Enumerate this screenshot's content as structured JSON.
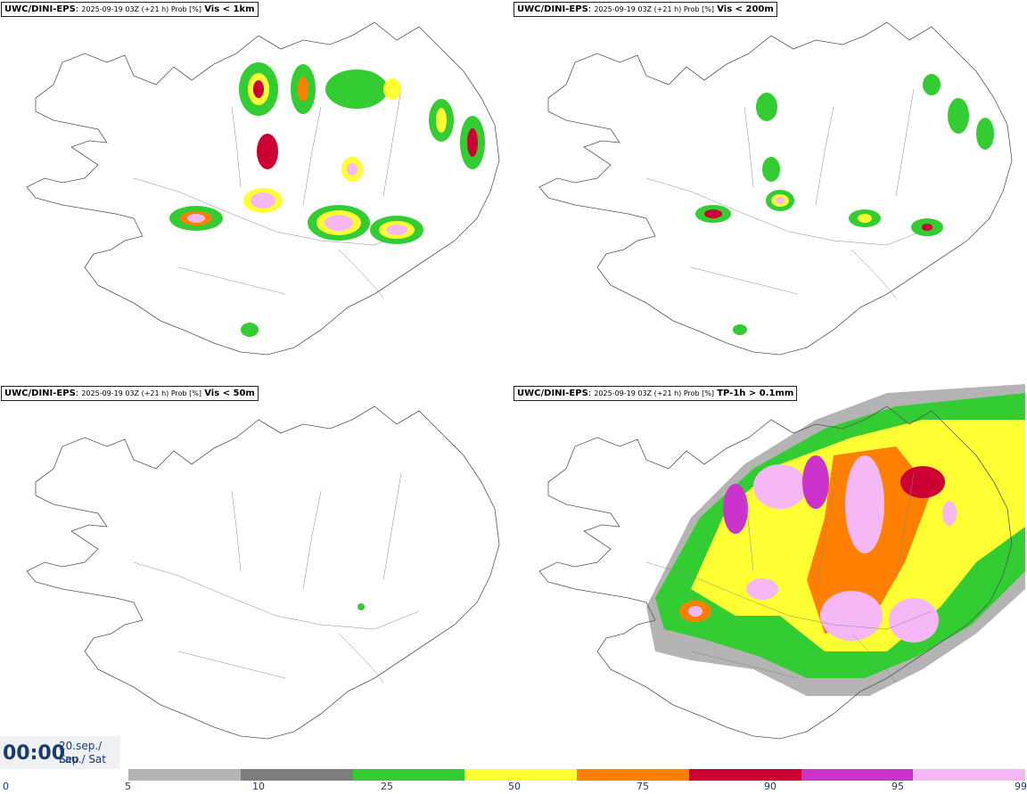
{
  "panels": [
    {
      "source": "UWC/DINI-EPS",
      "meta": "2025-09-19 03Z (+21 h) Prob [%]",
      "variable": "Vis < 1km"
    },
    {
      "source": "UWC/DINI-EPS",
      "meta": "2025-09-19 03Z (+21 h) Prob [%]",
      "variable": "Vis < 200m"
    },
    {
      "source": "UWC/DINI-EPS",
      "meta": "2025-09-19 03Z (+21 h) Prob [%]",
      "variable": "Vis < 50m"
    },
    {
      "source": "UWC/DINI-EPS",
      "meta": "2025-09-19 03Z (+21 h) Prob [%]",
      "variable": "TP-1h > 0.1mm"
    }
  ],
  "time": {
    "clock": "00:00",
    "date": "20.sep./ Sep",
    "day": "Lau./ Sat"
  },
  "colorbar": {
    "ticks": [
      "0",
      "5",
      "10",
      "25",
      "50",
      "75",
      "90",
      "95",
      "99"
    ],
    "colors": [
      "#b4b4b4",
      "#7d7d7d",
      "#33cc33",
      "#ffff33",
      "#ff7f00",
      "#cc0033",
      "#cc33cc",
      "#f5b8f5"
    ]
  }
}
